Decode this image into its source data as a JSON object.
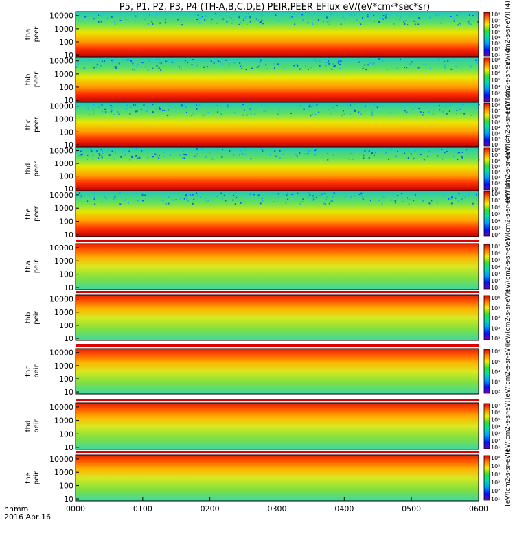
{
  "title": "P5, P1, P2, P3, P4 (TH-A,B,C,D,E) PEIR,PEER EFlux eV/(eV*cm²*sec*sr)",
  "bottom_label": {
    "line1": "hhmm",
    "line2": "2016 Apr 16"
  },
  "chart_data": {
    "type": "heatmap",
    "title": "P5, P1, P2, P3, P4 (TH-A,B,C,D,E) PEIR,PEER EFlux eV/(eV*cm²*sec*sr)",
    "x_ticks": [
      "0000",
      "0100",
      "0200",
      "0300",
      "0400",
      "0500",
      "0600"
    ],
    "x_range_hours": [
      0,
      6
    ],
    "yscale": "log",
    "y_ticks": [
      "10",
      "100",
      "1000",
      "10000"
    ],
    "ylim": [
      7,
      20000
    ],
    "colorbar_unit": "[eV/(cm2-s-sr-eV)]",
    "panels": [
      {
        "probe": "tha",
        "species": "peer",
        "cb_ticks": [
          "10¹",
          "10²",
          "10³",
          "10⁴",
          "10⁵",
          "10⁶",
          "10⁷",
          "10⁸"
        ],
        "cb_label": "(eV/(cm2-s-sr-eV)) (4)",
        "top_bar": false
      },
      {
        "probe": "thb",
        "species": "peer",
        "cb_ticks": [
          "10²",
          "10³",
          "10⁴",
          "10⁵",
          "10⁶",
          "10⁷",
          "10⁸"
        ],
        "cb_label": "(eV/(cm2-s-sr-eV)) (4)",
        "top_bar": false
      },
      {
        "probe": "thc",
        "species": "peer",
        "cb_ticks": [
          "10¹",
          "10²",
          "10³",
          "10⁴",
          "10⁵",
          "10⁶",
          "10⁷",
          "10⁸"
        ],
        "cb_label": "(eV/(cm2-s-sr-eV)) (4)",
        "top_bar": false
      },
      {
        "probe": "thd",
        "species": "peer",
        "cb_ticks": [
          "10¹",
          "10²",
          "10³",
          "10⁴",
          "10⁵",
          "10⁶",
          "10⁷",
          "10⁸"
        ],
        "cb_label": "(eV/(cm2-s-sr-eV)) (4)",
        "top_bar": false
      },
      {
        "probe": "the",
        "species": "peer",
        "cb_ticks": [
          "10²",
          "10³",
          "10⁴",
          "10⁵",
          "10⁶",
          "10⁷",
          "10⁸"
        ],
        "cb_label": "(eV/(cm2-s-sr-eV)) (4)",
        "top_bar": false
      },
      {
        "probe": "tha",
        "species": "peir",
        "cb_ticks": [
          "10¹",
          "10²",
          "10³",
          "10⁴",
          "10⁵",
          "10⁶",
          "10⁷"
        ],
        "cb_label": "[eV/(cm2-s-sr-eV)]",
        "top_bar": true
      },
      {
        "probe": "thb",
        "species": "peir",
        "cb_ticks": [
          "10²",
          "10³",
          "10⁴",
          "10⁵",
          "10⁶"
        ],
        "cb_label": "[eV/(cm2-s-sr-eV)]",
        "top_bar": true
      },
      {
        "probe": "thc",
        "species": "peir",
        "cb_ticks": [
          "10²",
          "10³",
          "10⁴",
          "10⁵",
          "10⁶"
        ],
        "cb_label": "[eV/(cm2-s-sr-eV)]",
        "top_bar": true
      },
      {
        "probe": "thd",
        "species": "peir",
        "cb_ticks": [
          "10¹",
          "10²",
          "10³",
          "10⁴",
          "10⁵",
          "10⁶",
          "10⁷"
        ],
        "cb_label": "[eV/(cm2-s-sr-eV)]",
        "top_bar": true
      },
      {
        "probe": "the",
        "species": "peir",
        "cb_ticks": [
          "10¹",
          "10²",
          "10³",
          "10⁴",
          "10⁵",
          "10⁶"
        ],
        "cb_label": "[eV/(cm2-s-sr-eV)]",
        "top_bar": true
      }
    ]
  }
}
